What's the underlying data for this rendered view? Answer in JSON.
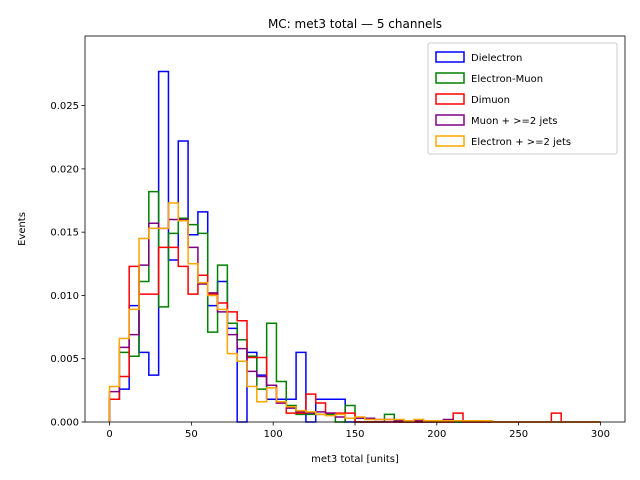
{
  "chart_data": {
    "type": "histogram",
    "title": "MC: met3 total — 5 channels",
    "xlabel": "met3 total [units]",
    "ylabel": "Events",
    "xlim": [
      -15,
      315
    ],
    "ylim": [
      0,
      0.0305
    ],
    "xticks": [
      0,
      50,
      100,
      150,
      200,
      250,
      300
    ],
    "xtick_labels": [
      "0",
      "50",
      "100",
      "150",
      "200",
      "250",
      "300"
    ],
    "yticks": [
      0,
      0.005,
      0.01,
      0.015,
      0.02,
      0.025
    ],
    "ytick_labels": [
      "0.000",
      "0.005",
      "0.010",
      "0.015",
      "0.020",
      "0.025"
    ],
    "legend_position": "top-right",
    "grid": false,
    "bin_edges": [
      0,
      6,
      12,
      18,
      24,
      30,
      36,
      42,
      48,
      54,
      60,
      66,
      72,
      78,
      84,
      90,
      96,
      102,
      108,
      114,
      120,
      126,
      132,
      138,
      144,
      150,
      156,
      162,
      168,
      174,
      180,
      186,
      192,
      198,
      204,
      210,
      216,
      222,
      228,
      234,
      240,
      246,
      252,
      258,
      264,
      270,
      276,
      282,
      288,
      294,
      300
    ],
    "series": [
      {
        "name": "Dielectron",
        "color": "#0000ff",
        "values": [
          0.0018,
          0.0026,
          0.0092,
          0.0055,
          0.0037,
          0.0277,
          0.0128,
          0.0222,
          0.0148,
          0.0166,
          0.0092,
          0.0111,
          0.0074,
          0.0,
          0.0055,
          0.0037,
          0.0018,
          0.0018,
          0.0018,
          0.0055,
          0.0,
          0.0018,
          0.0018,
          0.0018,
          0,
          0,
          0,
          0,
          0,
          0,
          0,
          0,
          0,
          0,
          0,
          0,
          0,
          0,
          0,
          0,
          0,
          0,
          0,
          0,
          0,
          0,
          0,
          0,
          0,
          0
        ]
      },
      {
        "name": "Electron-Muon",
        "color": "#008000",
        "values": [
          0.0018,
          0.0055,
          0.0052,
          0.0111,
          0.0182,
          0.0091,
          0.0149,
          0.0161,
          0.0156,
          0.0149,
          0.0071,
          0.0124,
          0.0078,
          0.0065,
          0.0052,
          0.0026,
          0.0078,
          0.0032,
          0.0013,
          0.0006,
          0.0006,
          0.0006,
          0.0006,
          0.0,
          0.0013,
          0.0,
          0.0,
          0.0,
          0.0006,
          0.0,
          0,
          0,
          0,
          0,
          0,
          0,
          0,
          0,
          0,
          0,
          0,
          0,
          0,
          0,
          0,
          0,
          0,
          0,
          0,
          0
        ]
      },
      {
        "name": "Dimuon",
        "color": "#ff0000",
        "values": [
          0.0018,
          0.0036,
          0.0123,
          0.0101,
          0.0101,
          0.0138,
          0.0138,
          0.0123,
          0.0101,
          0.0116,
          0.0101,
          0.0094,
          0.0087,
          0.008,
          0.0051,
          0.0051,
          0.0029,
          0.0015,
          0.0007,
          0.0007,
          0.0022,
          0.0015,
          0.0007,
          0.0007,
          0.0007,
          0.0,
          0.0,
          0.0,
          0.0,
          0.0,
          0.0,
          0.0,
          0.0,
          0.0,
          0.0,
          0.0007,
          0.0,
          0.0,
          0.0,
          0.0,
          0.0,
          0.0,
          0.0,
          0.0,
          0.0,
          0.0007,
          0.0,
          0.0,
          0.0,
          0.0
        ]
      },
      {
        "name": "Muon + >=2 jets",
        "color": "#800080",
        "values": [
          0.0024,
          0.0059,
          0.0069,
          0.0124,
          0.0157,
          0.0153,
          0.016,
          0.016,
          0.0138,
          0.0109,
          0.0102,
          0.0087,
          0.0069,
          0.0058,
          0.004,
          0.0036,
          0.0029,
          0.0015,
          0.0011,
          0.0008,
          0.0007,
          0.0008,
          0.0007,
          0.0004,
          0.0003,
          0.0003,
          0.0003,
          0.0002,
          0.0002,
          0.0001,
          0.0001,
          0.0001,
          0.0001,
          0.0001,
          0.0002,
          0.0001,
          0.0001,
          0.0001,
          0.0001,
          0.0,
          0.0,
          0.0,
          0.0,
          0.0,
          0.0,
          0.0,
          0.0,
          0.0,
          0.0,
          0.0
        ]
      },
      {
        "name": "Electron + >=2 jets",
        "color": "#ffa500",
        "values": [
          0.0028,
          0.0066,
          0.0089,
          0.0145,
          0.0153,
          0.0153,
          0.0173,
          0.0159,
          0.0125,
          0.011,
          0.01,
          0.0089,
          0.0054,
          0.0048,
          0.0028,
          0.0016,
          0.0027,
          0.0016,
          0.0012,
          0.0009,
          0.0008,
          0.0006,
          0.0005,
          0.0006,
          0.0003,
          0.0004,
          0.0002,
          0.0002,
          0.0002,
          0.0002,
          0.0001,
          0.0002,
          0.0001,
          0.0001,
          0.0001,
          0.0001,
          0.0001,
          0.0001,
          0.0001,
          0.0,
          0.0,
          0.0,
          0.0,
          0.0,
          0.0,
          0.0,
          0.0,
          0.0,
          0.0,
          0.0
        ]
      }
    ]
  }
}
